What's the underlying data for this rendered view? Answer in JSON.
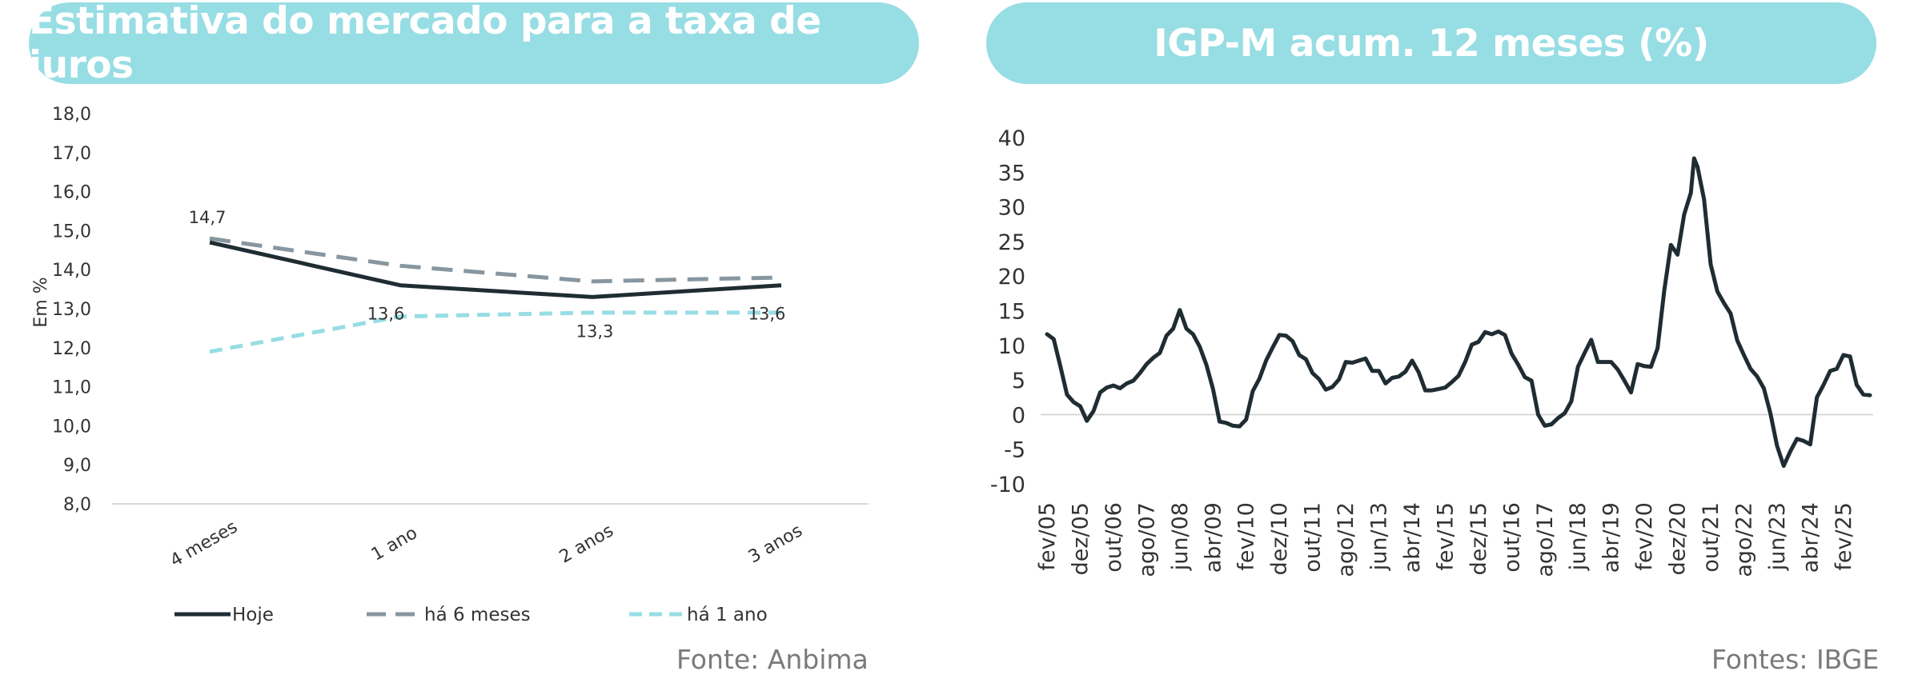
{
  "left_panel": {
    "title": "Estimativa do mercado para a taxa de juros",
    "source": "Fonte: Anbima"
  },
  "right_panel": {
    "title": "IGP-M acum. 12 meses (%)",
    "source": "Fontes: IBGE"
  },
  "colors": {
    "title_bg": "#97dde4",
    "hoje": "#1f2d33",
    "ha6": "#8796a0",
    "ha1": "#97dde4",
    "igpm": "#1f2d33"
  },
  "chart_data": [
    {
      "type": "line",
      "title": "Estimativa do mercado para a taxa de juros",
      "ylabel": "Em %",
      "categories": [
        "4 meses",
        "1 ano",
        "2 anos",
        "3 anos"
      ],
      "ylim": [
        8.0,
        18.0
      ],
      "yticks": [
        "8,0",
        "9,0",
        "10,0",
        "11,0",
        "12,0",
        "13,0",
        "14,0",
        "15,0",
        "16,0",
        "17,0",
        "18,0"
      ],
      "legend_position": "bottom",
      "series": [
        {
          "name": "Hoje",
          "values": [
            14.7,
            13.6,
            13.3,
            13.6
          ],
          "style": "solid"
        },
        {
          "name": "há 6 meses",
          "values": [
            14.8,
            14.1,
            13.7,
            13.8
          ],
          "style": "dashed"
        },
        {
          "name": "há 1 ano",
          "values": [
            11.9,
            12.8,
            12.9,
            12.9
          ],
          "style": "dashed"
        }
      ],
      "data_labels": [
        {
          "series": 0,
          "index": 0,
          "text": "14,7"
        },
        {
          "series": 0,
          "index": 1,
          "text": "13,6"
        },
        {
          "series": 0,
          "index": 2,
          "text": "13,3"
        },
        {
          "series": 0,
          "index": 3,
          "text": "13,6"
        }
      ]
    },
    {
      "type": "line",
      "title": "IGP-M acum. 12 meses (%)",
      "ylim": [
        -10,
        40
      ],
      "yticks": [
        "-10",
        "-5",
        "0",
        "5",
        "10",
        "15",
        "20",
        "25",
        "30",
        "35",
        "40"
      ],
      "xlim": [
        "2005-02",
        "2025-10"
      ],
      "xticks": [
        "fev/05",
        "dez/05",
        "out/06",
        "ago/07",
        "jun/08",
        "abr/09",
        "fev/10",
        "dez/10",
        "out/11",
        "ago/12",
        "jun/13",
        "abr/14",
        "fev/15",
        "dez/15",
        "out/16",
        "ago/17",
        "jun/18",
        "abr/19",
        "fev/20",
        "dez/20",
        "out/21",
        "ago/22",
        "jun/23",
        "abr/24",
        "fev/25"
      ],
      "x": [
        "2005-02",
        "2005-04",
        "2005-06",
        "2005-08",
        "2005-10",
        "2005-12",
        "2006-02",
        "2006-04",
        "2006-06",
        "2006-08",
        "2006-10",
        "2006-12",
        "2007-02",
        "2007-04",
        "2007-06",
        "2007-08",
        "2007-10",
        "2007-12",
        "2008-02",
        "2008-04",
        "2008-06",
        "2008-08",
        "2008-10",
        "2008-12",
        "2009-02",
        "2009-04",
        "2009-06",
        "2009-08",
        "2009-10",
        "2009-12",
        "2010-02",
        "2010-04",
        "2010-06",
        "2010-08",
        "2010-10",
        "2010-12",
        "2011-02",
        "2011-04",
        "2011-06",
        "2011-08",
        "2011-10",
        "2011-12",
        "2012-02",
        "2012-04",
        "2012-06",
        "2012-08",
        "2012-10",
        "2012-12",
        "2013-02",
        "2013-04",
        "2013-06",
        "2013-08",
        "2013-10",
        "2013-12",
        "2014-02",
        "2014-04",
        "2014-06",
        "2014-08",
        "2014-10",
        "2014-12",
        "2015-02",
        "2015-04",
        "2015-06",
        "2015-08",
        "2015-10",
        "2015-12",
        "2016-02",
        "2016-04",
        "2016-06",
        "2016-08",
        "2016-10",
        "2016-12",
        "2017-02",
        "2017-04",
        "2017-06",
        "2017-08",
        "2017-10",
        "2017-12",
        "2018-02",
        "2018-04",
        "2018-06",
        "2018-08",
        "2018-10",
        "2018-12",
        "2019-02",
        "2019-04",
        "2019-06",
        "2019-08",
        "2019-10",
        "2019-12",
        "2020-02",
        "2020-04",
        "2020-06",
        "2020-08",
        "2020-10",
        "2020-12",
        "2021-02",
        "2021-04",
        "2021-05",
        "2021-06",
        "2021-08",
        "2021-10",
        "2021-12",
        "2022-02",
        "2022-04",
        "2022-06",
        "2022-08",
        "2022-10",
        "2022-12",
        "2023-02",
        "2023-04",
        "2023-06",
        "2023-08",
        "2023-10",
        "2023-12",
        "2024-02",
        "2024-04",
        "2024-06",
        "2024-08",
        "2024-10",
        "2024-12",
        "2025-02",
        "2025-04",
        "2025-06",
        "2025-08",
        "2025-10"
      ],
      "values": [
        11.6,
        10.9,
        7.0,
        2.9,
        1.8,
        1.2,
        -0.9,
        0.5,
        3.2,
        3.9,
        4.2,
        3.8,
        4.5,
        4.9,
        6.0,
        7.3,
        8.2,
        8.9,
        11.4,
        12.4,
        15.1,
        12.4,
        11.6,
        9.8,
        7.2,
        3.7,
        -1.0,
        -1.2,
        -1.6,
        -1.7,
        -0.7,
        3.4,
        5.2,
        7.8,
        9.7,
        11.5,
        11.4,
        10.6,
        8.6,
        8.0,
        6.0,
        5.1,
        3.6,
        4.0,
        5.1,
        7.6,
        7.5,
        7.8,
        8.1,
        6.3,
        6.3,
        4.5,
        5.3,
        5.5,
        6.2,
        7.8,
        6.1,
        3.5,
        3.5,
        3.7,
        3.9,
        4.7,
        5.6,
        7.6,
        10.1,
        10.5,
        11.9,
        11.6,
        12.0,
        11.5,
        8.8,
        7.2,
        5.4,
        4.9,
        0.0,
        -1.6,
        -1.4,
        -0.5,
        0.2,
        1.9,
        6.9,
        8.9,
        10.8,
        7.6,
        7.6,
        7.6,
        6.5,
        4.9,
        3.2,
        7.3,
        7.0,
        6.9,
        9.6,
        17.9,
        24.5,
        23.1,
        28.9,
        32.0,
        37.0,
        35.8,
        31.1,
        21.7,
        17.8,
        16.1,
        14.6,
        10.7,
        8.6,
        6.6,
        5.5,
        3.8,
        0.2,
        -4.5,
        -7.4,
        -5.3,
        -3.5,
        -3.8,
        -4.3,
        2.5,
        4.3,
        6.3,
        6.6,
        8.6,
        8.4,
        4.3,
        2.9,
        2.8
      ]
    }
  ]
}
